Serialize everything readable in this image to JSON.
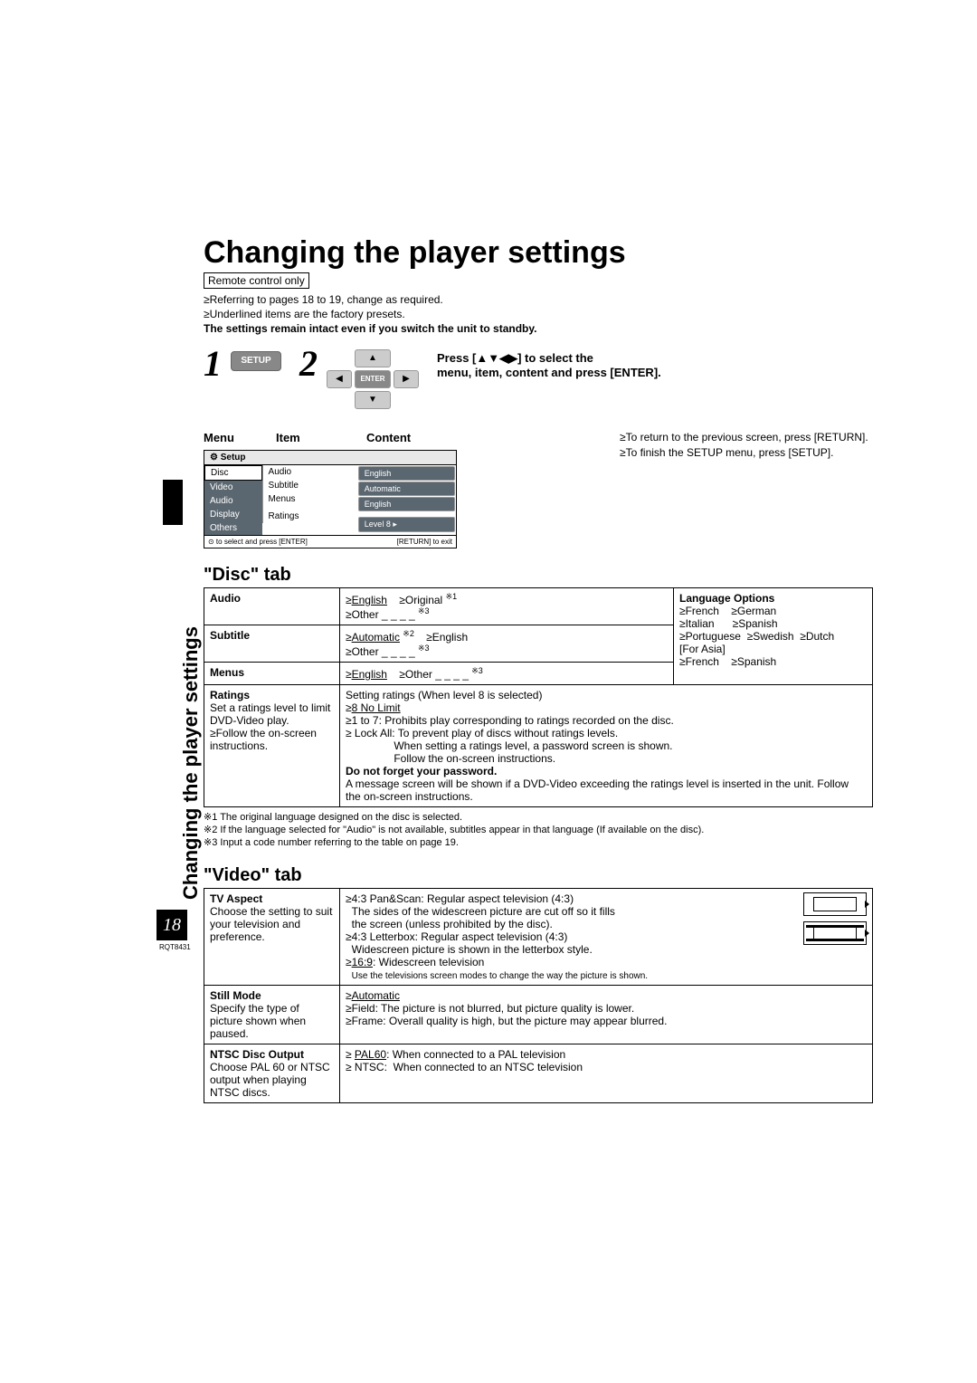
{
  "sideLabel": "Changing the player settings",
  "title": "Changing the player settings",
  "remote": "Remote control only",
  "intro1": "≥Referring to pages 18 to 19, change as required.",
  "intro2": "≥Underlined items are the factory presets.",
  "intro3": "The settings remain intact even if you switch the unit to standby.",
  "step1Num": "1",
  "step2Num": "2",
  "setupBtn": "SETUP",
  "enterBtn": "ENTER",
  "step2a": "Press [▲▼◀▶] to select the",
  "step2b": "menu, item, content and press [ENTER].",
  "menuLabel": "Menu",
  "itemLabel": "Item",
  "contentLabel": "Content",
  "osd": {
    "head": "⚙ Setup",
    "col1": [
      "Disc",
      "Video",
      "Audio",
      "Display",
      "Others"
    ],
    "col2": [
      "Audio",
      "Subtitle",
      "Menus",
      "",
      "Ratings"
    ],
    "col3": [
      "English",
      "Automatic",
      "English",
      "",
      "Level 8 ▸"
    ],
    "foot1": "⊙ to select and press [ENTER]",
    "foot2": "[RETURN] to exit"
  },
  "return1": "≥To return to the previous screen, press [RETURN].",
  "return2": "≥To finish the SETUP menu, press [SETUP].",
  "discTab": "\"Disc\" tab",
  "disc": {
    "audioLabel": "Audio",
    "audioVal": "≥<span class='u'>English</span>&nbsp;&nbsp;&nbsp;&nbsp;≥Original <sup>※1</sup><br>≥Other _ _ _ _ <sup>※3</sup>",
    "subLabel": "Subtitle",
    "subVal": "≥<span class='u'>Automatic</span> <sup>※2</sup>&nbsp;&nbsp;&nbsp;&nbsp;≥English<br>≥Other _ _ _ _ <sup>※3</sup>",
    "menuLabel": "Menus",
    "menuVal": "≥<span class='u'>English</span>&nbsp;&nbsp;&nbsp;&nbsp;≥Other _ _ _ _ <sup>※3</sup>",
    "langLabel": "Language Options",
    "langVal": "≥French&nbsp;&nbsp;&nbsp;&nbsp;≥German<br>≥Italian&nbsp;&nbsp;&nbsp;&nbsp;&nbsp;&nbsp;≥Spanish<br>≥Portuguese&nbsp;&nbsp;≥Swedish&nbsp;&nbsp;≥Dutch<br>[For Asia]<br>≥French&nbsp;&nbsp;&nbsp;&nbsp;≥Spanish",
    "ratLabel": "Ratings",
    "ratSub": "Set a ratings level to limit DVD-Video play.<br>≥Follow the on-screen instructions.",
    "ratVal": "Setting ratings (When level 8 is selected)<br>≥<span class='u'>8 No Limit</span><br>≥1 to 7: Prohibits play corresponding to ratings recorded on the disc.<br>≥ Lock All: To prevent play of discs without ratings levels.<br>&nbsp;&nbsp;&nbsp;&nbsp;&nbsp;&nbsp;&nbsp;&nbsp;&nbsp;&nbsp;&nbsp;&nbsp;&nbsp;&nbsp;&nbsp;&nbsp;When setting a ratings level, a password screen is shown.<br>&nbsp;&nbsp;&nbsp;&nbsp;&nbsp;&nbsp;&nbsp;&nbsp;&nbsp;&nbsp;&nbsp;&nbsp;&nbsp;&nbsp;&nbsp;&nbsp;Follow the on-screen instructions.<br><b>Do not forget your password.</b><br>A message screen will be shown if a DVD-Video exceeding the ratings level is inserted in the unit. Follow the on-screen instructions."
  },
  "fn1": "※1 The original language designed on the disc is selected.",
  "fn2": "※2 If the language selected for \"Audio\" is not available, subtitles appear in that language (If available on the disc).",
  "fn3": "※3 Input a code number referring to the table on page 19.",
  "videoTab": "\"Video\" tab",
  "video": {
    "aspLabel": "TV Aspect",
    "aspSub": "Choose the setting to suit your television and preference.",
    "aspVal": "≥4:3 Pan&Scan: Regular aspect television (4:3)<br>&nbsp;&nbsp;The sides of the widescreen picture are cut off so it fills<br>&nbsp;&nbsp;the screen (unless prohibited by the disc).<br>≥4:3 Letterbox: Regular aspect television (4:3)<br>&nbsp;&nbsp;Widescreen picture is shown in the letterbox style.<br>≥<span class='u'>16:9</span>: Widescreen television<br>&nbsp;&nbsp;<span style='font-size:10px'>Use the televisions screen modes to change the way the picture is shown.</span>",
    "stillLabel": "Still Mode",
    "stillSub": "Specify the type of picture shown when paused.",
    "stillVal": "≥<span class='u'>Automatic</span><br>≥Field: The picture is not blurred, but picture quality is lower.<br>≥Frame: Overall quality is high, but the picture may appear blurred.",
    "ntscLabel": "NTSC Disc Output",
    "ntscSub": "Choose PAL 60 or NTSC output when playing NTSC discs.",
    "ntscVal": "≥ <span class='u'>PAL60</span>: When connected to a PAL television<br>≥ NTSC:&nbsp;&nbsp;When connected to an NTSC television"
  },
  "pageNum": "18",
  "pubCode": "RQT8431"
}
